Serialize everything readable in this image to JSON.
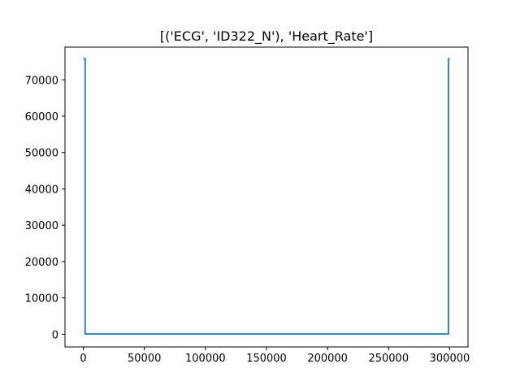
{
  "chart_data": {
    "type": "line",
    "title": "[('ECG', 'ID322_N'), 'Heart_Rate']",
    "xlabel": "",
    "ylabel": "",
    "xlim": [
      -15000,
      315000
    ],
    "ylim": [
      -3500,
      79000
    ],
    "xticks": [
      0,
      50000,
      100000,
      150000,
      200000,
      250000,
      300000
    ],
    "xtick_labels": [
      "0",
      "50000",
      "100000",
      "150000",
      "200000",
      "250000",
      "300000"
    ],
    "yticks": [
      0,
      10000,
      20000,
      30000,
      40000,
      50000,
      60000,
      70000
    ],
    "ytick_labels": [
      "0",
      "10000",
      "20000",
      "30000",
      "40000",
      "50000",
      "60000",
      "70000"
    ],
    "grid": false,
    "line_color": "#1f77b4",
    "series": [
      {
        "x": [
          0,
          1500,
          1500,
          2000,
          299000,
          299000,
          300000
        ],
        "y": [
          75800,
          75800,
          80,
          80,
          80,
          75800,
          75800
        ]
      }
    ]
  }
}
